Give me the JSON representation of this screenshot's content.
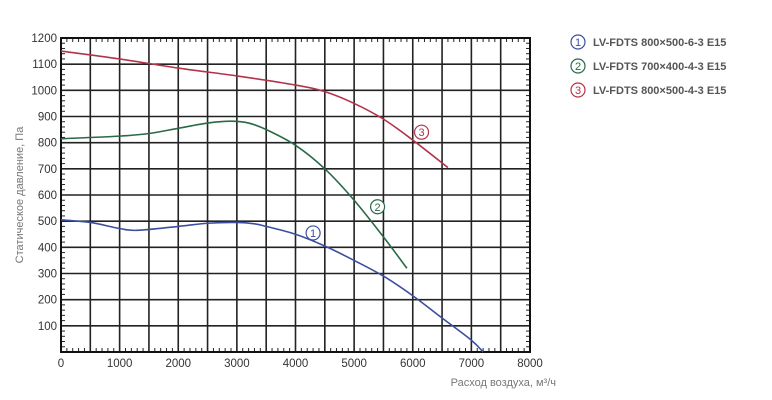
{
  "chart_data": {
    "type": "line",
    "title": "",
    "xlabel": "Расход воздуха, м³/ч",
    "ylabel": "Статическое давление, Па",
    "xlim": [
      0,
      8000
    ],
    "ylim": [
      0,
      1200
    ],
    "xticks": [
      0,
      1000,
      2000,
      3000,
      4000,
      5000,
      6000,
      7000,
      8000
    ],
    "yticks": [
      100,
      200,
      300,
      400,
      500,
      600,
      700,
      800,
      900,
      1000,
      1100,
      1200
    ],
    "grid": true,
    "legend_position": "top-right",
    "series": [
      {
        "id": "1",
        "name": "LV-FDTS 800×500-6-3 E15",
        "color": "#3b4fa0",
        "label_at": [
          4300,
          455
        ],
        "x": [
          0,
          500,
          1000,
          1300,
          2000,
          2500,
          3000,
          3300,
          3500,
          4000,
          4500,
          5000,
          5500,
          6000,
          6500,
          7000,
          7200
        ],
        "y": [
          505,
          495,
          472,
          465,
          480,
          492,
          495,
          490,
          480,
          450,
          405,
          350,
          290,
          215,
          130,
          45,
          0
        ]
      },
      {
        "id": "2",
        "name": "LV-FDTS 700×400-4-3 E15",
        "color": "#2a6a46",
        "label_at": [
          5400,
          555
        ],
        "x": [
          0,
          1000,
          1500,
          2000,
          2500,
          2900,
          3200,
          3500,
          4000,
          4500,
          5000,
          5500,
          5900
        ],
        "y": [
          815,
          825,
          835,
          855,
          875,
          882,
          875,
          850,
          790,
          700,
          580,
          440,
          320
        ]
      },
      {
        "id": "3",
        "name": "LV-FDTS 800×500-4-3 E15",
        "color": "#b5334a",
        "label_at": [
          6150,
          840
        ],
        "x": [
          0,
          1000,
          2000,
          3000,
          4000,
          4500,
          5000,
          5500,
          6000,
          6600
        ],
        "y": [
          1150,
          1120,
          1085,
          1055,
          1020,
          995,
          950,
          890,
          810,
          705
        ]
      }
    ]
  }
}
